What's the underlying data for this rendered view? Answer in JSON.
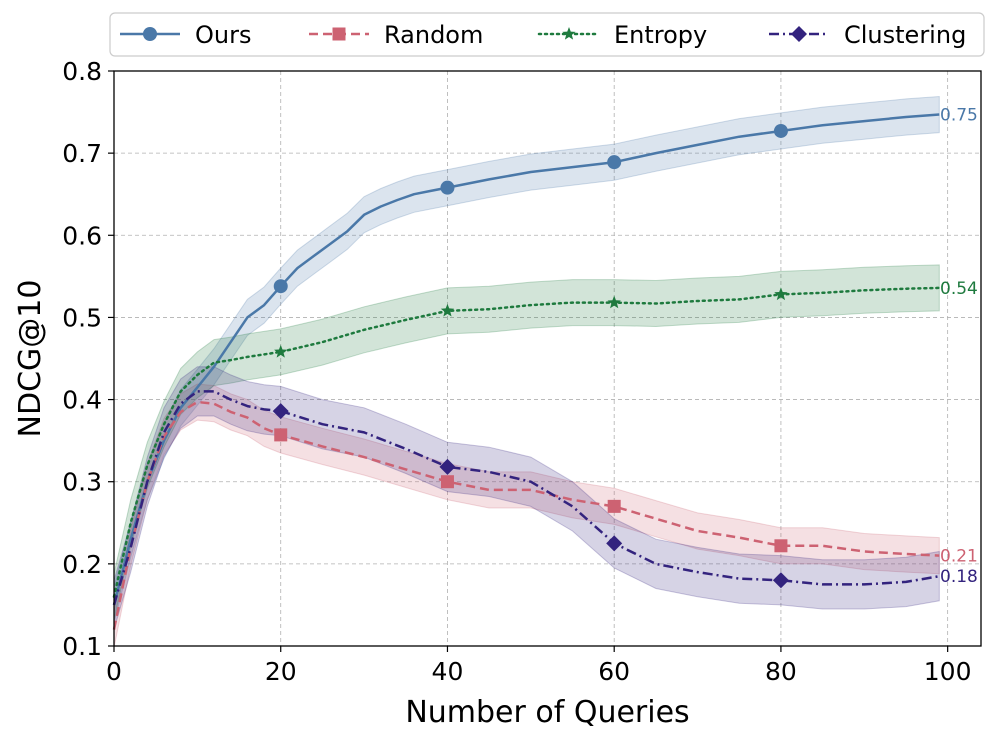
{
  "chart_data": {
    "type": "line",
    "xlabel": "Number of Queries",
    "ylabel": "NDCG@10",
    "xlim": [
      0,
      104
    ],
    "ylim": [
      0.1,
      0.8
    ],
    "xticks": [
      0,
      20,
      40,
      60,
      80,
      100
    ],
    "xtick_labels": [
      "0",
      "20",
      "40",
      "60",
      "80",
      "100"
    ],
    "yticks": [
      0.1,
      0.2,
      0.3,
      0.4,
      0.5,
      0.6,
      0.7,
      0.8
    ],
    "ytick_labels": [
      "0.1",
      "0.2",
      "0.3",
      "0.4",
      "0.5",
      "0.6",
      "0.7",
      "0.8"
    ],
    "grid": true,
    "legend_position": "top",
    "series": [
      {
        "name": "Ours",
        "color": "#4a78a8",
        "dash": "solid",
        "marker": "circle",
        "end_label": "0.75",
        "band_width": 0.022,
        "x": [
          0,
          2,
          4,
          6,
          8,
          10,
          12,
          14,
          16,
          18,
          20,
          22,
          24,
          26,
          28,
          30,
          32,
          34,
          36,
          38,
          40,
          45,
          50,
          55,
          60,
          65,
          70,
          75,
          80,
          85,
          90,
          95,
          99
        ],
        "y": [
          0.15,
          0.23,
          0.3,
          0.35,
          0.39,
          0.415,
          0.44,
          0.47,
          0.5,
          0.515,
          0.538,
          0.56,
          0.575,
          0.59,
          0.605,
          0.625,
          0.635,
          0.643,
          0.65,
          0.654,
          0.658,
          0.668,
          0.677,
          0.683,
          0.689,
          0.7,
          0.71,
          0.72,
          0.727,
          0.734,
          0.739,
          0.744,
          0.747
        ]
      },
      {
        "name": "Random",
        "color": "#cd6272",
        "dash": "dashed",
        "marker": "square",
        "end_label": "0.21",
        "band_width": 0.022,
        "x": [
          0,
          2,
          4,
          6,
          8,
          10,
          12,
          14,
          16,
          18,
          20,
          25,
          30,
          35,
          40,
          45,
          50,
          55,
          60,
          65,
          70,
          75,
          80,
          85,
          90,
          95,
          99
        ],
        "y": [
          0.12,
          0.22,
          0.3,
          0.355,
          0.385,
          0.397,
          0.395,
          0.385,
          0.378,
          0.365,
          0.357,
          0.343,
          0.33,
          0.315,
          0.3,
          0.29,
          0.29,
          0.278,
          0.27,
          0.255,
          0.24,
          0.232,
          0.222,
          0.222,
          0.215,
          0.212,
          0.21
        ]
      },
      {
        "name": "Entropy",
        "color": "#1e7a3e",
        "dash": "dotted",
        "marker": "star",
        "end_label": "0.54",
        "band_width": 0.028,
        "x": [
          0,
          2,
          4,
          6,
          8,
          10,
          12,
          14,
          16,
          18,
          20,
          25,
          30,
          35,
          40,
          45,
          50,
          55,
          60,
          65,
          70,
          75,
          80,
          85,
          90,
          95,
          99
        ],
        "y": [
          0.16,
          0.25,
          0.32,
          0.37,
          0.41,
          0.43,
          0.445,
          0.448,
          0.452,
          0.455,
          0.458,
          0.47,
          0.485,
          0.497,
          0.508,
          0.51,
          0.515,
          0.518,
          0.518,
          0.517,
          0.52,
          0.522,
          0.528,
          0.53,
          0.533,
          0.535,
          0.536
        ]
      },
      {
        "name": "Clustering",
        "color": "#33237e",
        "dash": "dashdot",
        "marker": "diamond",
        "end_label": "0.18",
        "band_width": 0.03,
        "x": [
          0,
          2,
          4,
          6,
          8,
          10,
          12,
          14,
          16,
          18,
          20,
          25,
          30,
          35,
          40,
          45,
          50,
          55,
          60,
          65,
          70,
          75,
          80,
          85,
          90,
          95,
          99
        ],
        "y": [
          0.15,
          0.22,
          0.3,
          0.36,
          0.395,
          0.41,
          0.41,
          0.4,
          0.392,
          0.388,
          0.386,
          0.37,
          0.36,
          0.34,
          0.318,
          0.312,
          0.3,
          0.27,
          0.225,
          0.2,
          0.19,
          0.182,
          0.18,
          0.175,
          0.175,
          0.178,
          0.185
        ]
      }
    ]
  }
}
